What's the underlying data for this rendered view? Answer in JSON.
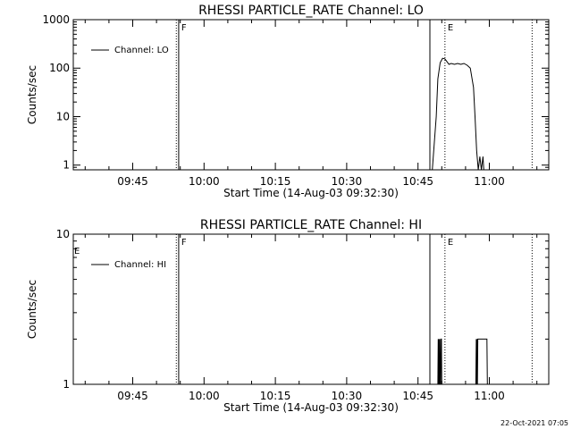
{
  "page": {
    "timestamp": "22-Oct-2021 07:05"
  },
  "chart_data": [
    {
      "type": "line",
      "title": "RHESSI PARTICLE_RATE Channel: LO",
      "xlabel": "Start Time (14-Aug-03 09:32:30)",
      "ylabel": "Counts/sec",
      "yscale": "log",
      "xlim": [
        "09:32:30",
        "11:12:30"
      ],
      "ylim": [
        0.8,
        1000
      ],
      "xticks": [
        "09:45",
        "10:00",
        "10:15",
        "10:30",
        "10:45",
        "11:00"
      ],
      "yticks": [
        {
          "value": 1,
          "label": "1"
        },
        {
          "value": 10,
          "label": "10"
        },
        {
          "value": 100,
          "label": "100"
        },
        {
          "value": 1000,
          "label": "1000"
        }
      ],
      "legend": {
        "position": "top-left",
        "entries": [
          "Channel: LO"
        ]
      },
      "series": [
        {
          "name": "Channel: LO",
          "x": [
            "10:48:00",
            "10:48:50",
            "10:49:10",
            "10:49:40",
            "10:50:10",
            "10:50:40",
            "10:51:00",
            "10:51:30",
            "10:52:00",
            "10:52:40",
            "10:53:20",
            "10:54:00",
            "10:54:40",
            "10:55:20",
            "10:56:00",
            "10:56:40",
            "10:57:00",
            "10:57:20",
            "10:57:40",
            "10:58:00",
            "10:58:20",
            "10:58:40",
            "10:58:50"
          ],
          "y": [
            0.8,
            10,
            60,
            130,
            160,
            155,
            140,
            120,
            125,
            120,
            125,
            120,
            125,
            115,
            100,
            40,
            10,
            2,
            0.8,
            1.5,
            0.8,
            1.5,
            0.8
          ]
        }
      ],
      "vertical_markers": [
        {
          "time": "09:54:10",
          "style": "dotted",
          "label": ""
        },
        {
          "time": "09:54:40",
          "style": "solid",
          "label": "F"
        },
        {
          "time": "10:47:30",
          "style": "solid",
          "label": ""
        },
        {
          "time": "10:50:40",
          "style": "dotted",
          "label": "E"
        },
        {
          "time": "11:09:00",
          "style": "dotted",
          "label": ""
        }
      ]
    },
    {
      "type": "line",
      "title": "RHESSI PARTICLE_RATE Channel: HI",
      "xlabel": "Start Time (14-Aug-03 09:32:30)",
      "ylabel": "Counts/sec",
      "yscale": "log",
      "xlim": [
        "09:32:30",
        "11:12:30"
      ],
      "ylim": [
        1,
        10
      ],
      "xticks": [
        "09:45",
        "10:00",
        "10:15",
        "10:30",
        "10:45",
        "11:00"
      ],
      "yticks": [
        {
          "value": 1,
          "label": "1"
        },
        {
          "value": 10,
          "label": "10"
        }
      ],
      "legend": {
        "position": "top-left",
        "entries": [
          "Channel: HI"
        ]
      },
      "series": [
        {
          "name": "Channel: HI",
          "x": [
            "10:49:10",
            "10:49:15",
            "10:49:20",
            "10:49:25",
            "10:49:30",
            "10:49:35",
            "10:49:40",
            "10:49:45",
            "10:49:50",
            "10:49:55",
            "10:50:00",
            "10:57:10",
            "10:57:15",
            "10:57:20",
            "10:57:25",
            "10:57:30",
            "10:57:35",
            "10:57:40",
            "10:57:45",
            "10:57:50",
            "10:59:30",
            "10:59:35"
          ],
          "y": [
            1,
            2,
            1,
            2,
            1,
            2,
            1,
            1,
            2,
            2,
            1,
            1,
            2,
            1,
            2,
            1,
            2,
            2,
            2,
            2,
            2,
            1
          ]
        }
      ],
      "vertical_markers": [
        {
          "time": "09:54:10",
          "style": "dotted",
          "label": ""
        },
        {
          "time": "09:54:40",
          "style": "solid",
          "label": "F"
        },
        {
          "time": "10:47:30",
          "style": "solid",
          "label": ""
        },
        {
          "time": "10:50:40",
          "style": "dotted",
          "label": "E"
        },
        {
          "time": "11:09:00",
          "style": "dotted",
          "label": ""
        }
      ],
      "edge_label": "E"
    }
  ]
}
